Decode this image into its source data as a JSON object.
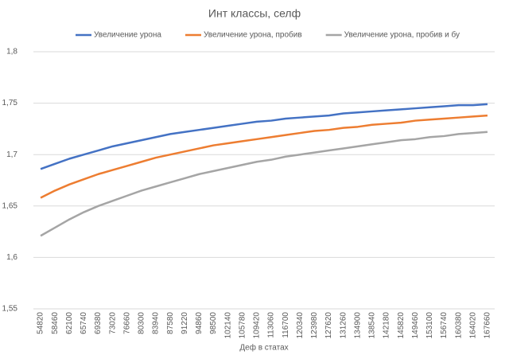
{
  "chart_data": {
    "type": "line",
    "title": "Инт классы, селф",
    "x_label": "Деф в статах",
    "categories": [
      "54820",
      "58460",
      "62100",
      "65740",
      "69380",
      "73020",
      "76660",
      "80300",
      "83940",
      "87580",
      "91220",
      "94860",
      "98500",
      "102140",
      "105780",
      "109420",
      "113060",
      "116700",
      "120340",
      "123980",
      "127620",
      "131260",
      "134900",
      "138540",
      "142180",
      "145820",
      "149460",
      "153100",
      "156740",
      "160380",
      "164020",
      "167660"
    ],
    "series": [
      {
        "name": "Увеличение урона",
        "color": "#4472c4",
        "values": [
          1.686,
          1.691,
          1.696,
          1.7,
          1.704,
          1.708,
          1.711,
          1.714,
          1.717,
          1.72,
          1.722,
          1.724,
          1.726,
          1.728,
          1.73,
          1.732,
          1.733,
          1.735,
          1.736,
          1.737,
          1.738,
          1.74,
          1.741,
          1.742,
          1.743,
          1.744,
          1.745,
          1.746,
          1.747,
          1.748,
          1.748,
          1.749
        ]
      },
      {
        "name": "Увеличение урона, пробив",
        "color": "#ed7d31",
        "values": [
          1.658,
          1.665,
          1.671,
          1.676,
          1.681,
          1.685,
          1.689,
          1.693,
          1.697,
          1.7,
          1.703,
          1.706,
          1.709,
          1.711,
          1.713,
          1.715,
          1.717,
          1.719,
          1.721,
          1.723,
          1.724,
          1.726,
          1.727,
          1.729,
          1.73,
          1.731,
          1.733,
          1.734,
          1.735,
          1.736,
          1.737,
          1.738
        ]
      },
      {
        "name": "Увеличение урона, пробив и бу",
        "color": "#a5a5a5",
        "values": [
          1.621,
          1.629,
          1.637,
          1.644,
          1.65,
          1.655,
          1.66,
          1.665,
          1.669,
          1.673,
          1.677,
          1.681,
          1.684,
          1.687,
          1.69,
          1.693,
          1.695,
          1.698,
          1.7,
          1.702,
          1.704,
          1.706,
          1.708,
          1.71,
          1.712,
          1.714,
          1.715,
          1.717,
          1.718,
          1.72,
          1.721,
          1.722
        ]
      }
    ],
    "ylim": [
      1.55,
      1.8
    ],
    "yticks": [
      {
        "value": 1.55,
        "label": "1,55"
      },
      {
        "value": 1.6,
        "label": "1,6"
      },
      {
        "value": 1.65,
        "label": "1,65"
      },
      {
        "value": 1.7,
        "label": "1,7"
      },
      {
        "value": 1.75,
        "label": "1,75"
      },
      {
        "value": 1.8,
        "label": "1,8"
      }
    ],
    "grid": true,
    "legend": "top"
  }
}
